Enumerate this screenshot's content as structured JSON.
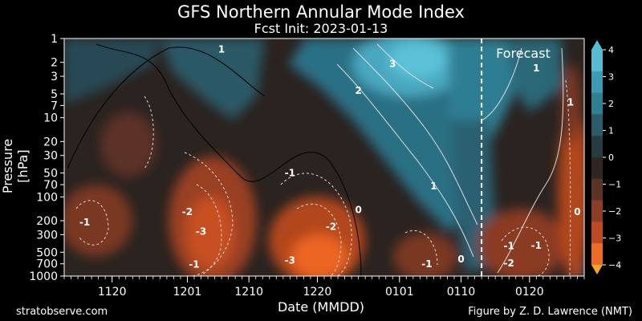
{
  "chart_data": {
    "type": "heatmap",
    "title": "GFS Northern Annular Mode Index",
    "subtitle": "Fcst Init: 2023-01-13",
    "xlabel": "Date (MMDD)",
    "ylabel": "Pressure [hPa]",
    "y_scale": "log",
    "y_inverted": true,
    "ylim": [
      1000,
      1
    ],
    "y_ticks": [
      1,
      2,
      3,
      5,
      7,
      10,
      20,
      30,
      50,
      70,
      100,
      200,
      300,
      500,
      700,
      1000
    ],
    "x_ticks": [
      "1120",
      "1201",
      "1210",
      "1220",
      "0101",
      "0110",
      "0120"
    ],
    "x_tick_dates": [
      "2022-11-20",
      "2022-12-01",
      "2022-12-10",
      "2022-12-20",
      "2023-01-01",
      "2023-01-10",
      "2023-01-20"
    ],
    "xlim": [
      "2022-11-13",
      "2023-01-28"
    ],
    "forecast_start": "2023-01-13",
    "forecast_label": "Forecast",
    "colorbar": {
      "ticks": [
        4,
        3,
        2,
        1,
        0,
        -1,
        -2,
        -3,
        -4
      ],
      "tick_labels": [
        "4",
        "3",
        "2",
        "1",
        "0",
        "−1",
        "−2",
        "−3",
        "−4"
      ],
      "colors": [
        "#57bdd2",
        "#3b9db4",
        "#2d7f94",
        "#2a5c6a",
        "#263c42",
        "#2f2622",
        "#5c3325",
        "#8d3d26",
        "#bf4a22",
        "#ee6a25"
      ],
      "extend": "both"
    },
    "contour_labels": [
      {
        "text": "1",
        "date": "2022-12-06",
        "p": 1.5
      },
      {
        "text": "3",
        "date": "2022-12-31",
        "p": 2.3
      },
      {
        "text": "2",
        "date": "2022-12-26",
        "p": 5
      },
      {
        "text": "1",
        "date": "2023-01-21",
        "p": 2.6
      },
      {
        "text": "1",
        "date": "2023-01-26",
        "p": 7
      },
      {
        "text": "1",
        "date": "2023-01-06",
        "p": 80
      },
      {
        "text": "0",
        "date": "2022-12-26",
        "p": 160
      },
      {
        "text": "-1",
        "date": "2022-12-16",
        "p": 55
      },
      {
        "text": "-2",
        "date": "2022-12-01",
        "p": 170
      },
      {
        "text": "-3",
        "date": "2022-12-03",
        "p": 300
      },
      {
        "text": "-1",
        "date": "2022-11-16",
        "p": 230
      },
      {
        "text": "-2",
        "date": "2022-12-22",
        "p": 260
      },
      {
        "text": "-3",
        "date": "2022-12-16",
        "p": 700
      },
      {
        "text": "-1",
        "date": "2022-12-02",
        "p": 780
      },
      {
        "text": "0",
        "date": "2023-01-10",
        "p": 670
      },
      {
        "text": "-1",
        "date": "2023-01-05",
        "p": 770
      },
      {
        "text": "-1",
        "date": "2023-01-17",
        "p": 460
      },
      {
        "text": "-1",
        "date": "2023-01-21",
        "p": 450
      },
      {
        "text": "-2",
        "date": "2023-01-17",
        "p": 760
      },
      {
        "text": "0",
        "date": "2023-01-27",
        "p": 170
      }
    ]
  },
  "credits": {
    "left": "stratobserve.com",
    "right": "Figure by Z. D. Lawrence (NMT)"
  }
}
